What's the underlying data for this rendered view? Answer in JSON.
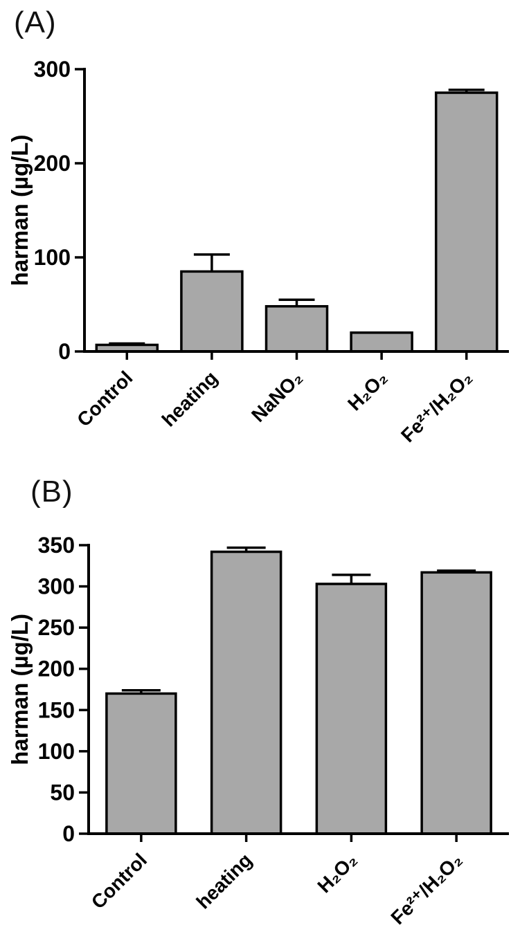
{
  "figure": {
    "background": "#ffffff"
  },
  "panels": [
    {
      "label": "(A)"
    },
    {
      "label": "(B)"
    }
  ],
  "chart_data": [
    {
      "type": "bar",
      "panel": "A",
      "title": "",
      "categories": [
        "Control",
        "heating",
        "NaNO₂",
        "H₂O₂",
        "Fe²⁺/H₂O₂"
      ],
      "values": [
        7,
        85,
        48,
        20,
        275
      ],
      "errors": [
        1.5,
        18,
        7,
        0,
        3
      ],
      "xlabel": "",
      "ylabel": "harman (µg/L)",
      "ylim": [
        0,
        300
      ],
      "yticks": [
        0,
        100,
        200,
        300
      ],
      "bar_color": "#a8a8a8",
      "bar_edge_color": "#000000",
      "error_bar_color": "#000000",
      "grid": false,
      "legend": "none"
    },
    {
      "type": "bar",
      "panel": "B",
      "title": "",
      "categories": [
        "Control",
        "heating",
        "H₂O₂",
        "Fe²⁺/H₂O₂"
      ],
      "values": [
        170,
        342,
        303,
        317
      ],
      "errors": [
        4,
        5,
        11,
        2
      ],
      "xlabel": "",
      "ylabel": "harman (µg/L)",
      "ylim": [
        0,
        350
      ],
      "yticks": [
        0,
        50,
        100,
        150,
        200,
        250,
        300,
        350
      ],
      "bar_color": "#a8a8a8",
      "bar_edge_color": "#000000",
      "error_bar_color": "#000000",
      "grid": false,
      "legend": "none"
    }
  ]
}
